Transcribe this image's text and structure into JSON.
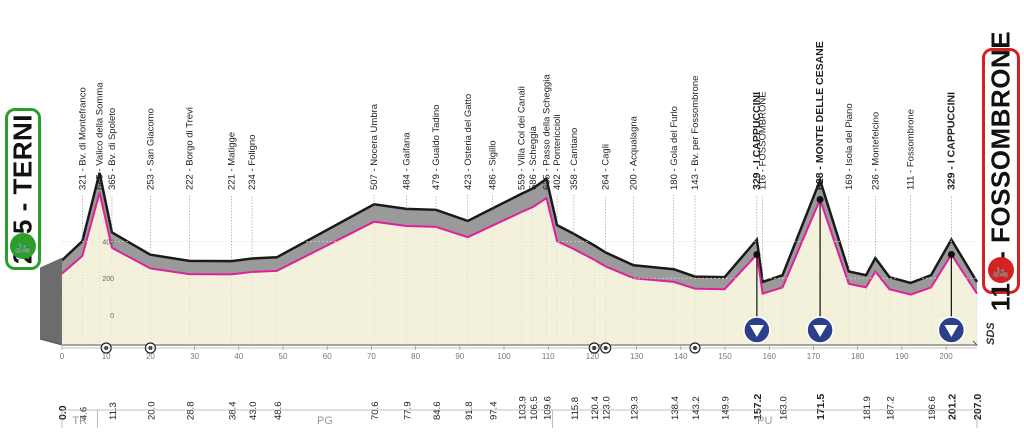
{
  "start": {
    "label": "225 - TERNI",
    "border_color": "#2aa02a",
    "icon": "bicycle-icon"
  },
  "finish": {
    "label": "116 - FOSSOMBRONE",
    "border_color": "#d42222",
    "icon": "finish-bicycle-icon"
  },
  "profile_colors": {
    "terrain": "#9a9a9a",
    "ridge": "#1a1a1a",
    "road": "#e0209a",
    "ground": "#f3f1dc"
  },
  "elevation_ticks": [
    "400",
    "200",
    "0"
  ],
  "waypoints": [
    {
      "km": 0.0,
      "label": "0.0",
      "alt": 225,
      "place": ""
    },
    {
      "km": 4.6,
      "label": "4.6",
      "alt": 321,
      "place": "321 - Bv. di Montefranco"
    },
    {
      "km": 8.5,
      "label": "",
      "alt": 665,
      "place": "665 - Valico della Somma"
    },
    {
      "km": 11.3,
      "label": "11.3",
      "alt": 365,
      "place": "365 - Bv. di Spoleto"
    },
    {
      "km": 20.0,
      "label": "20.0",
      "alt": 253,
      "place": "253 - San Giacomo"
    },
    {
      "km": 28.8,
      "label": "28.8",
      "alt": 222,
      "place": "222 - Borgo di Trevi"
    },
    {
      "km": 38.4,
      "label": "38.4",
      "alt": 221,
      "place": "221 - Matigge"
    },
    {
      "km": 43.0,
      "label": "43.0",
      "alt": 234,
      "place": "234 - Foligno"
    },
    {
      "km": 48.6,
      "label": "48.6",
      "alt": 240,
      "place": ""
    },
    {
      "km": 70.6,
      "label": "70.6",
      "alt": 507,
      "place": "507 - Nocera Umbra"
    },
    {
      "km": 77.9,
      "label": "77.9",
      "alt": 484,
      "place": "484 - Gaifana"
    },
    {
      "km": 84.6,
      "label": "84.6",
      "alt": 479,
      "place": "479 - Gualdo Tadino"
    },
    {
      "km": 91.8,
      "label": "91.8",
      "alt": 423,
      "place": "423 - Osteria del Gatto"
    },
    {
      "km": 97.4,
      "label": "97.4",
      "alt": 486,
      "place": "486 - Sigillo"
    },
    {
      "km": 103.9,
      "label": "103.9",
      "alt": 559,
      "place": "559 - Villa Col dei Canali"
    },
    {
      "km": 106.5,
      "label": "106.5",
      "alt": 586,
      "place": "586 - Scheggia"
    },
    {
      "km": 109.6,
      "label": "109.6",
      "alt": 635,
      "place": "635 - Passo della Scheggia"
    },
    {
      "km": 112.0,
      "label": "",
      "alt": 402,
      "place": "402 - Pontericcioli"
    },
    {
      "km": 115.8,
      "label": "115.8",
      "alt": 358,
      "place": "358 - Cantiano"
    },
    {
      "km": 120.4,
      "label": "120.4",
      "alt": 300,
      "place": ""
    },
    {
      "km": 123.0,
      "label": "123.0",
      "alt": 264,
      "place": "264 - Cagli"
    },
    {
      "km": 129.3,
      "label": "129.3",
      "alt": 200,
      "place": "200 - Acqualagna"
    },
    {
      "km": 138.4,
      "label": "138.4",
      "alt": 180,
      "place": "180 - Gola del Furlo"
    },
    {
      "km": 143.2,
      "label": "143.2",
      "alt": 143,
      "place": "143 - Bv. per Fossombrone"
    },
    {
      "km": 149.9,
      "label": "149.9",
      "alt": 140,
      "place": ""
    },
    {
      "km": 157.2,
      "label": "157.2",
      "alt": 329,
      "place": "329 - I CAPPUCCINI",
      "bold": true,
      "kom": true
    },
    {
      "km": 158.5,
      "label": "",
      "alt": 116,
      "place": "116 - FOSSOMBRONE"
    },
    {
      "km": 163.0,
      "label": "163.0",
      "alt": 150,
      "place": ""
    },
    {
      "km": 171.5,
      "label": "171.5",
      "alt": 628,
      "place": "628 - MONTE DELLE CESANE",
      "bold": true,
      "kom": true
    },
    {
      "km": 178.0,
      "label": "",
      "alt": 169,
      "place": "169 - Isola del Piano"
    },
    {
      "km": 181.9,
      "label": "181.9",
      "alt": 150,
      "place": ""
    },
    {
      "km": 184.0,
      "label": "",
      "alt": 236,
      "place": "236 - Montefelcino"
    },
    {
      "km": 187.2,
      "label": "187.2",
      "alt": 140,
      "place": ""
    },
    {
      "km": 192.0,
      "label": "",
      "alt": 111,
      "place": "111 - Fossombrone"
    },
    {
      "km": 196.6,
      "label": "196.6",
      "alt": 150,
      "place": ""
    },
    {
      "km": 201.2,
      "label": "201.2",
      "alt": 329,
      "place": "329 - I CAPPUCCINI",
      "bold": true,
      "kom": true
    },
    {
      "km": 207.0,
      "label": "207.0",
      "alt": 116,
      "place": ""
    }
  ],
  "km_ticks": [
    "0",
    "10",
    "20",
    "30",
    "40",
    "50",
    "60",
    "70",
    "80",
    "90",
    "100",
    "110",
    "120",
    "130",
    "140",
    "150",
    "160",
    "170",
    "180",
    "190",
    "200"
  ],
  "sprint_kms": [
    10,
    20,
    120.4,
    123,
    143.2
  ],
  "regions": [
    {
      "label": "TR",
      "from": 0,
      "to": 8
    },
    {
      "label": "PG",
      "from": 8,
      "to": 111
    },
    {
      "label": "PU",
      "from": 111,
      "to": 207
    }
  ],
  "sds_label": "SDS"
}
